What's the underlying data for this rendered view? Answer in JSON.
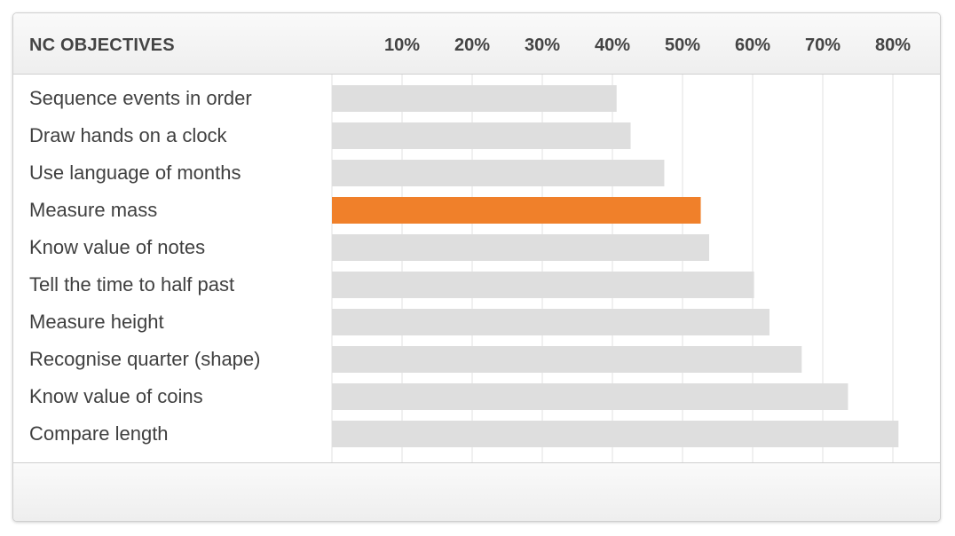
{
  "header": {
    "title": "NC OBJECTIVES"
  },
  "chart_data": {
    "type": "bar",
    "orientation": "horizontal",
    "title": "",
    "xlabel": "",
    "ylabel": "",
    "xlim": [
      0,
      81
    ],
    "ticks": [
      "10%",
      "20%",
      "30%",
      "40%",
      "50%",
      "60%",
      "70%",
      "80%"
    ],
    "tick_values": [
      10,
      20,
      30,
      40,
      50,
      60,
      70,
      80
    ],
    "grid": true,
    "highlight_index": 3,
    "colors": {
      "bar": "#dedede",
      "highlight": "#f0802a",
      "grid": "#e2e2e2"
    },
    "categories": [
      "Sequence events in order",
      "Draw hands on a clock",
      "Use language of months",
      "Measure mass",
      "Know value of notes",
      "Tell the time to half past",
      "Measure height",
      "Recognise quarter (shape)",
      "Know value of coins",
      "Compare length"
    ],
    "values": [
      40.6,
      42.6,
      47.4,
      52.6,
      53.8,
      60.2,
      62.4,
      67.0,
      73.6,
      80.8
    ]
  }
}
